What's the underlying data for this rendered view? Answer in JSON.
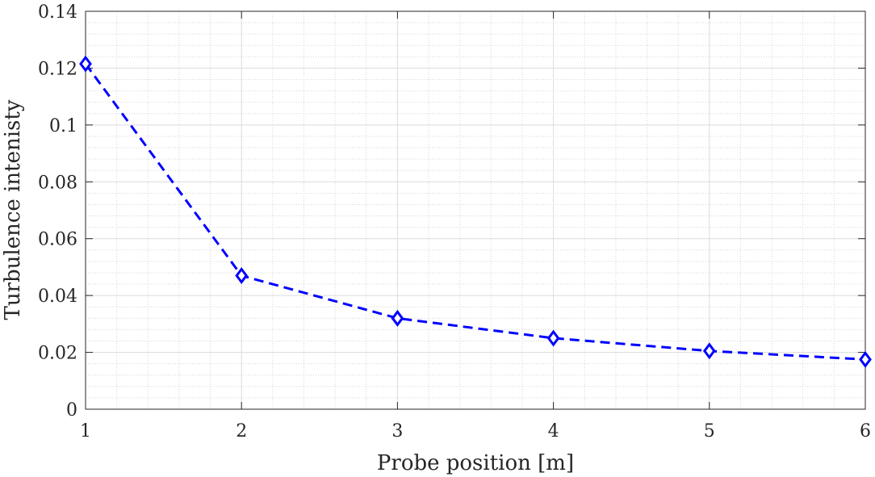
{
  "chart_data": {
    "type": "line",
    "title": "",
    "xlabel": "Probe position [m]",
    "ylabel": "Turbulence intenisty",
    "xlim": [
      1,
      6
    ],
    "ylim": [
      0,
      0.14
    ],
    "x_ticks": [
      "1",
      "2",
      "3",
      "4",
      "5",
      "6"
    ],
    "y_ticks": [
      "0",
      "0.02",
      "0.04",
      "0.06",
      "0.08",
      "0.1",
      "0.12",
      "0.14"
    ],
    "grid": true,
    "minor_grid": true,
    "legend": "none",
    "series": [
      {
        "x": [
          1,
          2,
          3,
          4,
          5,
          6
        ],
        "y": [
          0.1215,
          0.047,
          0.032,
          0.025,
          0.0205,
          0.0175
        ],
        "color": "#0000ff",
        "line_style": "dashed",
        "marker": "diamond"
      }
    ]
  }
}
